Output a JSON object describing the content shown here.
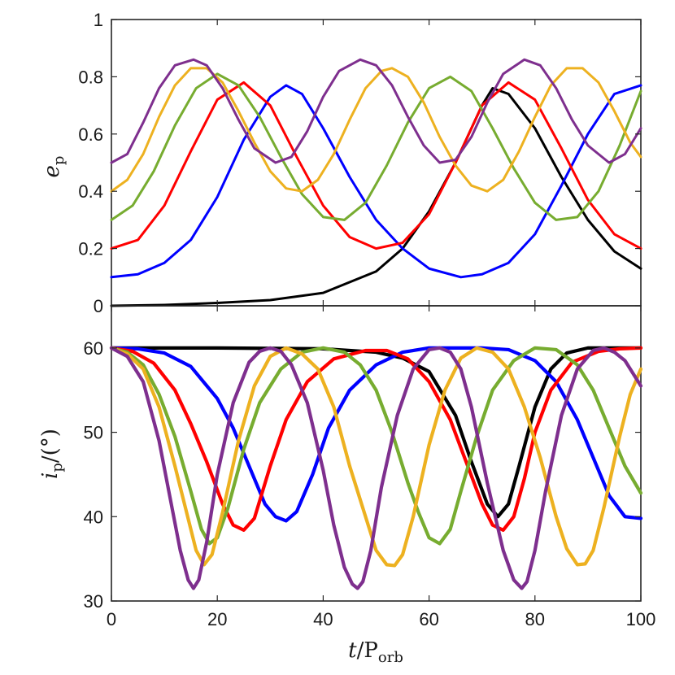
{
  "chart_data": [
    {
      "type": "line",
      "panel": "top",
      "ylabel": {
        "main": "e",
        "sub": "p"
      },
      "xlim": [
        0,
        100
      ],
      "ylim": [
        0,
        1
      ],
      "yticks": [
        0,
        0.2,
        0.4,
        0.6,
        0.8,
        1
      ],
      "ytick_labels": [
        "0",
        "0.2",
        "0.4",
        "0.6",
        "0.8",
        "1"
      ],
      "grid": false,
      "series": [
        {
          "color": "#000000",
          "x": [
            0,
            10,
            20,
            30,
            40,
            50,
            55,
            60,
            65,
            70,
            72,
            75,
            80,
            85,
            90,
            95,
            100
          ],
          "y": [
            0.0,
            0.003,
            0.01,
            0.02,
            0.045,
            0.12,
            0.2,
            0.33,
            0.5,
            0.7,
            0.76,
            0.74,
            0.62,
            0.45,
            0.3,
            0.19,
            0.13
          ]
        },
        {
          "color": "#0000ff",
          "x": [
            0,
            5,
            10,
            15,
            20,
            25,
            30,
            33,
            36,
            40,
            45,
            50,
            55,
            60,
            66,
            70,
            75,
            80,
            85,
            90,
            95,
            100
          ],
          "y": [
            0.1,
            0.11,
            0.15,
            0.23,
            0.38,
            0.58,
            0.73,
            0.77,
            0.74,
            0.62,
            0.45,
            0.3,
            0.2,
            0.13,
            0.1,
            0.11,
            0.15,
            0.25,
            0.42,
            0.6,
            0.74,
            0.77
          ]
        },
        {
          "color": "#ff0000",
          "x": [
            0,
            5,
            10,
            15,
            20,
            25,
            30,
            35,
            40,
            45,
            50,
            55,
            60,
            65,
            70,
            75,
            80,
            85,
            90,
            95,
            100
          ],
          "y": [
            0.2,
            0.23,
            0.35,
            0.54,
            0.72,
            0.78,
            0.7,
            0.52,
            0.35,
            0.24,
            0.2,
            0.22,
            0.32,
            0.5,
            0.7,
            0.78,
            0.72,
            0.55,
            0.37,
            0.25,
            0.2
          ]
        },
        {
          "color": "#77ac30",
          "x": [
            0,
            4,
            8,
            12,
            16,
            20,
            24,
            28,
            32,
            36,
            40,
            44,
            48,
            52,
            56,
            60,
            64,
            68,
            72,
            76,
            80,
            84,
            88,
            92,
            96,
            100
          ],
          "y": [
            0.3,
            0.35,
            0.47,
            0.63,
            0.76,
            0.81,
            0.77,
            0.66,
            0.52,
            0.39,
            0.31,
            0.3,
            0.36,
            0.49,
            0.64,
            0.76,
            0.8,
            0.75,
            0.62,
            0.48,
            0.36,
            0.3,
            0.31,
            0.4,
            0.56,
            0.75
          ]
        },
        {
          "color": "#edb120",
          "x": [
            0,
            3,
            6,
            9,
            12,
            15,
            18,
            21,
            24,
            27,
            30,
            33,
            36,
            39,
            42,
            45,
            48,
            51,
            53,
            56,
            59,
            62,
            65,
            68,
            71,
            74,
            77,
            80,
            83,
            86,
            89,
            92,
            95,
            98,
            100
          ],
          "y": [
            0.4,
            0.44,
            0.53,
            0.66,
            0.77,
            0.83,
            0.83,
            0.78,
            0.68,
            0.57,
            0.47,
            0.41,
            0.4,
            0.44,
            0.53,
            0.65,
            0.76,
            0.82,
            0.83,
            0.8,
            0.71,
            0.59,
            0.49,
            0.42,
            0.4,
            0.44,
            0.54,
            0.66,
            0.77,
            0.83,
            0.83,
            0.78,
            0.68,
            0.57,
            0.52
          ]
        },
        {
          "color": "#7e2f8e",
          "x": [
            0,
            3,
            6,
            9,
            12,
            15.5,
            18,
            21,
            24,
            27,
            31,
            34,
            37,
            40,
            43,
            47,
            50,
            53,
            56,
            59,
            62,
            65,
            68,
            71,
            74,
            78,
            81,
            84,
            87,
            90,
            94,
            97,
            100
          ],
          "y": [
            0.5,
            0.53,
            0.64,
            0.76,
            0.84,
            0.86,
            0.84,
            0.76,
            0.65,
            0.55,
            0.5,
            0.52,
            0.61,
            0.73,
            0.82,
            0.86,
            0.84,
            0.77,
            0.66,
            0.56,
            0.5,
            0.51,
            0.59,
            0.71,
            0.81,
            0.86,
            0.84,
            0.76,
            0.65,
            0.56,
            0.5,
            0.53,
            0.62
          ]
        }
      ]
    },
    {
      "type": "line",
      "panel": "bottom",
      "ylabel": {
        "main": "i",
        "sub": "p",
        "suffix": "/(°)"
      },
      "xlabel": {
        "main": "t",
        "slash": "/P",
        "sub": "orb"
      },
      "xlim": [
        0,
        100
      ],
      "ylim": [
        30,
        65
      ],
      "xticks": [
        0,
        20,
        40,
        60,
        80,
        100
      ],
      "xtick_labels": [
        "0",
        "20",
        "40",
        "60",
        "80",
        "100"
      ],
      "yticks": [
        30,
        40,
        50,
        60
      ],
      "ytick_labels": [
        "30",
        "40",
        "50",
        "60"
      ],
      "grid": false,
      "series": [
        {
          "color": "#000000",
          "x": [
            0,
            20,
            40,
            50,
            55,
            60,
            65,
            68,
            71,
            73,
            75,
            77,
            80,
            83,
            86,
            90,
            95,
            100
          ],
          "y": [
            60,
            60,
            59.9,
            59.5,
            58.8,
            57.2,
            52,
            46.5,
            41.5,
            40,
            41.5,
            46,
            53,
            57.5,
            59.4,
            60,
            60,
            60
          ]
        },
        {
          "color": "#0000ff",
          "x": [
            0,
            5,
            10,
            15,
            20,
            23,
            26,
            29,
            31,
            33,
            35,
            38,
            41,
            45,
            50,
            55,
            60,
            65,
            70,
            75,
            80,
            84,
            88,
            91,
            94,
            97,
            100
          ],
          "y": [
            60,
            59.9,
            59.4,
            57.8,
            54,
            50.5,
            46,
            41.5,
            40,
            39.5,
            40.6,
            45,
            50.5,
            55,
            58,
            59.5,
            60,
            60,
            60,
            59.8,
            58.5,
            56,
            51.5,
            47,
            42.5,
            40,
            39.8
          ]
        },
        {
          "color": "#ff0000",
          "x": [
            0,
            4,
            8,
            12,
            15,
            18,
            21,
            23,
            25,
            27,
            30,
            33,
            37,
            42,
            48,
            52,
            56,
            60,
            64,
            67,
            70,
            72,
            74,
            76,
            78,
            80,
            83,
            87,
            92,
            96,
            100
          ],
          "y": [
            60,
            59.6,
            58.2,
            55,
            51,
            46.5,
            41.5,
            39,
            38.4,
            39.8,
            46,
            51.5,
            56,
            58.7,
            59.7,
            59.7,
            58.7,
            56,
            51.5,
            46.5,
            41.5,
            39,
            38.4,
            40,
            44.5,
            50,
            55,
            58.3,
            59.6,
            59.9,
            60
          ]
        },
        {
          "color": "#77ac30",
          "x": [
            0,
            3,
            6,
            9,
            12,
            15,
            17,
            18.5,
            20,
            22,
            25,
            28,
            32,
            36,
            40,
            44,
            47,
            50,
            53,
            56,
            58,
            60,
            62,
            64,
            66,
            69,
            72,
            76,
            80,
            84,
            88,
            91,
            94,
            97,
            100
          ],
          "y": [
            60,
            59.5,
            58,
            54.5,
            49.5,
            43,
            38.5,
            36.8,
            37.5,
            41,
            48,
            53.5,
            57.5,
            59.5,
            60,
            59.5,
            58,
            55,
            50,
            44,
            40.5,
            37.5,
            36.8,
            38.5,
            43,
            49.5,
            55,
            58.5,
            60,
            59.8,
            58,
            55,
            50.5,
            46,
            42.8
          ]
        },
        {
          "color": "#edb120",
          "x": [
            0,
            3,
            6,
            9,
            12,
            14,
            16,
            17.5,
            19,
            21,
            24,
            27,
            30,
            33,
            36,
            39,
            42,
            45,
            48,
            50,
            52,
            53.5,
            55,
            57,
            60,
            63,
            66,
            69,
            72,
            75,
            78,
            81,
            84,
            86,
            88,
            89.5,
            91,
            93,
            96,
            98,
            100
          ],
          "y": [
            60,
            59.3,
            57.5,
            53,
            46,
            41,
            36,
            34.3,
            35.5,
            40.5,
            49,
            55.5,
            59,
            60,
            59.3,
            57.5,
            53,
            46,
            40,
            36,
            34.3,
            34.2,
            35.5,
            40,
            48.5,
            55,
            58.8,
            60,
            59.5,
            57.5,
            53,
            47,
            40,
            36.2,
            34.3,
            34.4,
            36,
            41,
            49.5,
            54.5,
            57.5
          ]
        },
        {
          "color": "#7e2f8e",
          "x": [
            0,
            3,
            6,
            9,
            11,
            13,
            14.5,
            15.5,
            16.5,
            18,
            20,
            23,
            26,
            28,
            30,
            32,
            34,
            37,
            40,
            42,
            44,
            45.5,
            46.5,
            47.5,
            49,
            51,
            54,
            57,
            60,
            62,
            64,
            66,
            68,
            71,
            74,
            76,
            77.5,
            78.5,
            80,
            82,
            85,
            88,
            91,
            93,
            95,
            97,
            100
          ],
          "y": [
            60,
            59,
            56,
            49,
            42.5,
            36,
            32.5,
            31.5,
            32.5,
            37,
            45,
            53.5,
            58.3,
            59.6,
            60,
            59.6,
            58,
            53.5,
            45.5,
            39,
            34,
            32,
            31.5,
            32.3,
            36,
            43.5,
            52,
            57.5,
            59.8,
            60,
            59.5,
            57.5,
            53,
            44,
            36,
            32.5,
            31.5,
            32.3,
            36,
            43,
            52,
            57.5,
            59.7,
            60,
            59.5,
            58.5,
            55.5
          ]
        }
      ]
    }
  ]
}
